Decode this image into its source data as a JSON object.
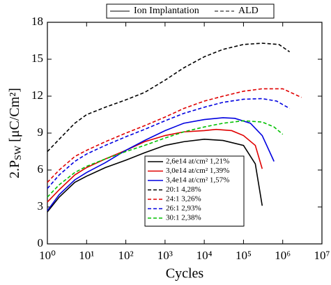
{
  "chart_data": {
    "type": "line",
    "xscale": "log",
    "xlabel": "Cycles",
    "ylabel": {
      "main": "2.P",
      "sub": "SW",
      "unit": " [μC/Cm²]"
    },
    "xlim": [
      1,
      10000000
    ],
    "ylim": [
      0,
      18
    ],
    "xticks": [
      {
        "value": 1,
        "label": "10⁰"
      },
      {
        "value": 10,
        "label": "10¹"
      },
      {
        "value": 100,
        "label": "10²"
      },
      {
        "value": 1000,
        "label": "10³"
      },
      {
        "value": 10000,
        "label": "10⁴"
      },
      {
        "value": 100000,
        "label": "10⁵"
      },
      {
        "value": 1000000,
        "label": "10⁶"
      },
      {
        "value": 10000000,
        "label": "10⁷"
      }
    ],
    "yticks": [
      0,
      3,
      6,
      9,
      12,
      15,
      18
    ],
    "style_legend": [
      {
        "label": "Ion Implantation",
        "dash": "solid"
      },
      {
        "label": "ALD",
        "dash": "dashed"
      }
    ],
    "series": [
      {
        "name": "2,6e14 at/cm² 1,21%",
        "color": "#000000",
        "dash": "solid",
        "x": [
          1,
          2,
          5,
          10,
          30,
          100,
          300,
          1000,
          3000,
          10000,
          30000,
          100000,
          200000,
          300000
        ],
        "values": [
          2.6,
          3.8,
          5.0,
          5.5,
          6.2,
          6.8,
          7.4,
          8.0,
          8.3,
          8.5,
          8.4,
          8.0,
          6.5,
          3.1
        ]
      },
      {
        "name": "3,0e14 at/cm² 1,39%",
        "color": "#e00000",
        "dash": "solid",
        "x": [
          1,
          2,
          5,
          10,
          30,
          100,
          300,
          1000,
          3000,
          10000,
          20000,
          50000,
          100000,
          200000,
          300000
        ],
        "values": [
          3.4,
          4.4,
          5.6,
          6.2,
          6.9,
          7.6,
          8.3,
          8.8,
          9.1,
          9.2,
          9.3,
          9.2,
          8.8,
          8.0,
          6.1
        ]
      },
      {
        "name": "3,4e14 at/cm² 1,57%",
        "color": "#0000e0",
        "dash": "solid",
        "x": [
          1,
          2,
          5,
          10,
          30,
          100,
          300,
          1000,
          3000,
          10000,
          30000,
          60000,
          150000,
          300000,
          600000
        ],
        "values": [
          2.7,
          4.0,
          5.2,
          5.8,
          6.6,
          7.6,
          8.4,
          9.2,
          9.8,
          10.1,
          10.25,
          10.2,
          9.8,
          8.8,
          6.7
        ]
      },
      {
        "name": "20:1 4,28%",
        "color": "#000000",
        "dash": "dashed",
        "x": [
          1,
          2,
          5,
          10,
          30,
          100,
          300,
          1000,
          3000,
          10000,
          30000,
          100000,
          300000,
          800000,
          1500000
        ],
        "values": [
          7.5,
          8.5,
          9.8,
          10.5,
          11.1,
          11.7,
          12.3,
          13.3,
          14.3,
          15.2,
          15.8,
          16.2,
          16.3,
          16.2,
          15.6
        ]
      },
      {
        "name": "24:1 3,26%",
        "color": "#e00000",
        "dash": "dashed",
        "x": [
          1,
          2,
          5,
          10,
          30,
          100,
          300,
          1000,
          3000,
          10000,
          30000,
          100000,
          300000,
          1000000,
          3000000
        ],
        "values": [
          5.0,
          6.0,
          7.1,
          7.6,
          8.3,
          9.0,
          9.6,
          10.3,
          11.0,
          11.6,
          12.0,
          12.4,
          12.6,
          12.6,
          11.9
        ]
      },
      {
        "name": "26:1 2,93%",
        "color": "#0000e0",
        "dash": "dashed",
        "x": [
          1,
          2,
          5,
          10,
          30,
          100,
          300,
          1000,
          3000,
          10000,
          30000,
          100000,
          300000,
          700000,
          1500000
        ],
        "values": [
          4.5,
          5.6,
          6.7,
          7.3,
          8.0,
          8.7,
          9.3,
          10.0,
          10.6,
          11.1,
          11.5,
          11.75,
          11.8,
          11.6,
          11.0
        ]
      },
      {
        "name": "30:1 2,38%",
        "color": "#00c000",
        "dash": "dashed",
        "x": [
          1,
          2,
          5,
          10,
          30,
          100,
          300,
          1000,
          3000,
          10000,
          30000,
          100000,
          300000,
          600000,
          1000000
        ],
        "values": [
          3.8,
          4.8,
          5.8,
          6.3,
          6.9,
          7.5,
          8.0,
          8.6,
          9.1,
          9.5,
          9.8,
          10.0,
          9.9,
          9.5,
          8.9
        ]
      }
    ]
  }
}
